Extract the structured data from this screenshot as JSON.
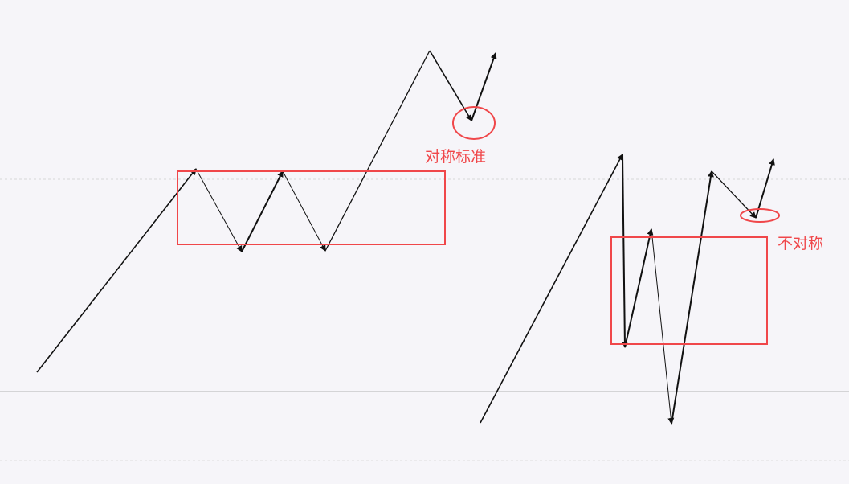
{
  "colors": {
    "background": "#f6f5f9",
    "highlight_red": "#f0474a",
    "wave_line": "#111111",
    "gridline_dashed": "#d6d6d6",
    "gridline_solid": "#b3b3b3"
  },
  "annotations": {
    "symmetric": "对称标准",
    "asymmetric": "不对称"
  }
}
